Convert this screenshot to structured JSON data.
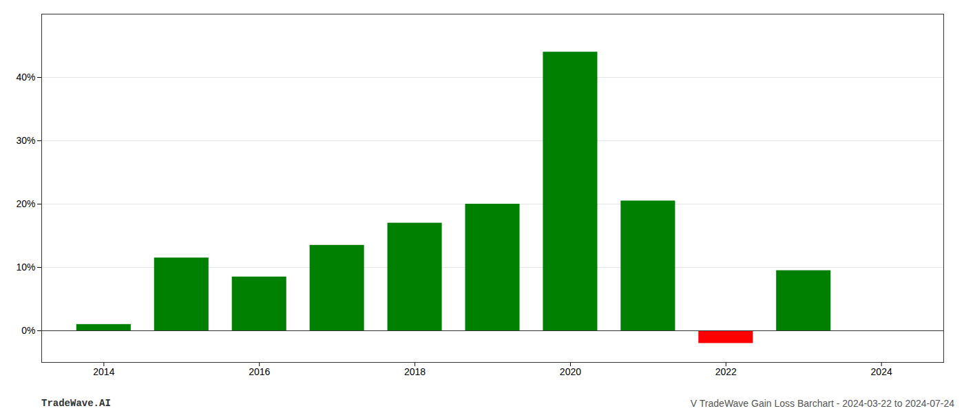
{
  "chart_data": {
    "type": "bar",
    "x": [
      2014,
      2015,
      2016,
      2017,
      2018,
      2019,
      2020,
      2021,
      2022,
      2023
    ],
    "values": [
      1.0,
      11.5,
      8.5,
      13.5,
      17.0,
      20.0,
      44.0,
      20.5,
      -2.0,
      9.5
    ],
    "colors": [
      "#008000",
      "#008000",
      "#008000",
      "#008000",
      "#008000",
      "#008000",
      "#008000",
      "#008000",
      "#ff0000",
      "#008000"
    ],
    "xlim": [
      2013.2,
      2024.8
    ],
    "xticks": [
      2014,
      2016,
      2018,
      2020,
      2022,
      2024
    ],
    "ylim": [
      -5,
      50
    ],
    "yticks": [
      {
        "value": 0,
        "label": "0%"
      },
      {
        "value": 10,
        "label": "10%"
      },
      {
        "value": 20,
        "label": "20%"
      },
      {
        "value": 30,
        "label": "30%"
      },
      {
        "value": 40,
        "label": "40%"
      }
    ],
    "grid": true,
    "annotations": [
      "TradeWave.AI",
      "V TradeWave Gain Loss Barchart - 2024-03-22 to 2024-07-24"
    ]
  }
}
